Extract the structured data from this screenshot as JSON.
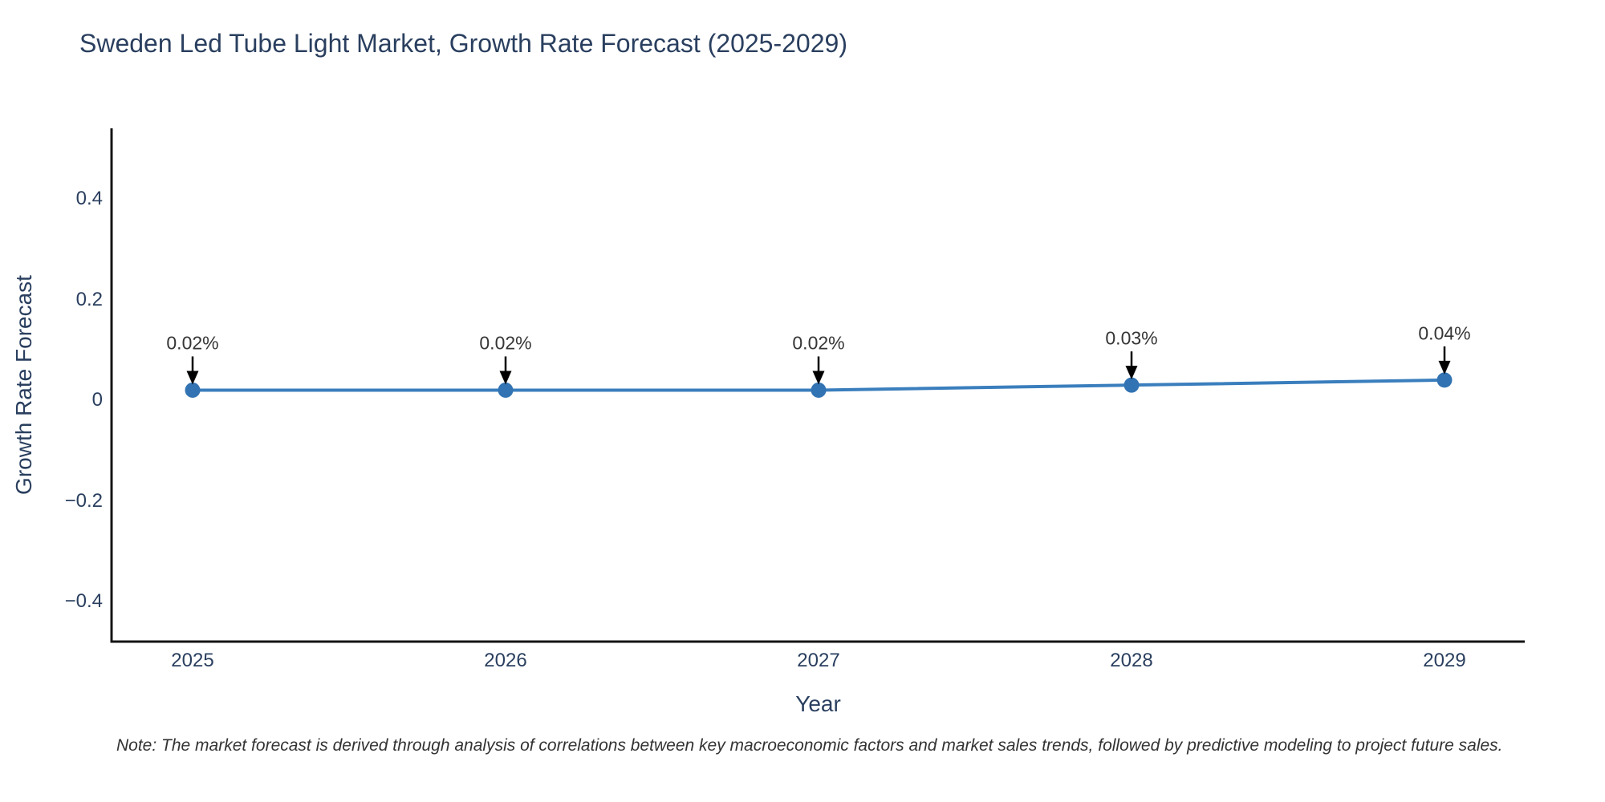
{
  "title": "Sweden Led Tube Light Market, Growth Rate Forecast (2025-2029)",
  "note": "Note: The market forecast is derived through analysis of correlations between key macroeconomic factors and market sales trends, followed by predictive modeling to project future sales.",
  "colors": {
    "line": "#3a7ebd",
    "marker": "#3273b3",
    "axis": "#141414",
    "arrow": "#000000",
    "heading_text": "#2a3f5f",
    "tick_text": "#2a3f5f",
    "annotation_text": "#363636",
    "note_text": "#333333"
  },
  "chart_data": {
    "type": "line",
    "x": [
      "2025",
      "2026",
      "2027",
      "2028",
      "2029"
    ],
    "values": [
      0.02,
      0.02,
      0.02,
      0.03,
      0.04
    ],
    "point_labels": [
      "0.02%",
      "0.02%",
      "0.02%",
      "0.03%",
      "0.04%"
    ],
    "series_name": "Growth Rate Forecast",
    "title": "Sweden Led Tube Light Market, Growth Rate Forecast (2025-2029)",
    "xlabel": "Year",
    "ylabel": "Growth Rate Forecast",
    "yticks": [
      0.4,
      0.2,
      0,
      -0.2,
      -0.4
    ],
    "ytick_labels": [
      "0.4",
      "0.2",
      "0",
      "−0.2",
      "−0.4"
    ],
    "ylim": [
      -0.48,
      0.54
    ],
    "xlim_padding_years": 0.26,
    "grid": false,
    "legend": false,
    "annotations_have_arrows": true
  }
}
